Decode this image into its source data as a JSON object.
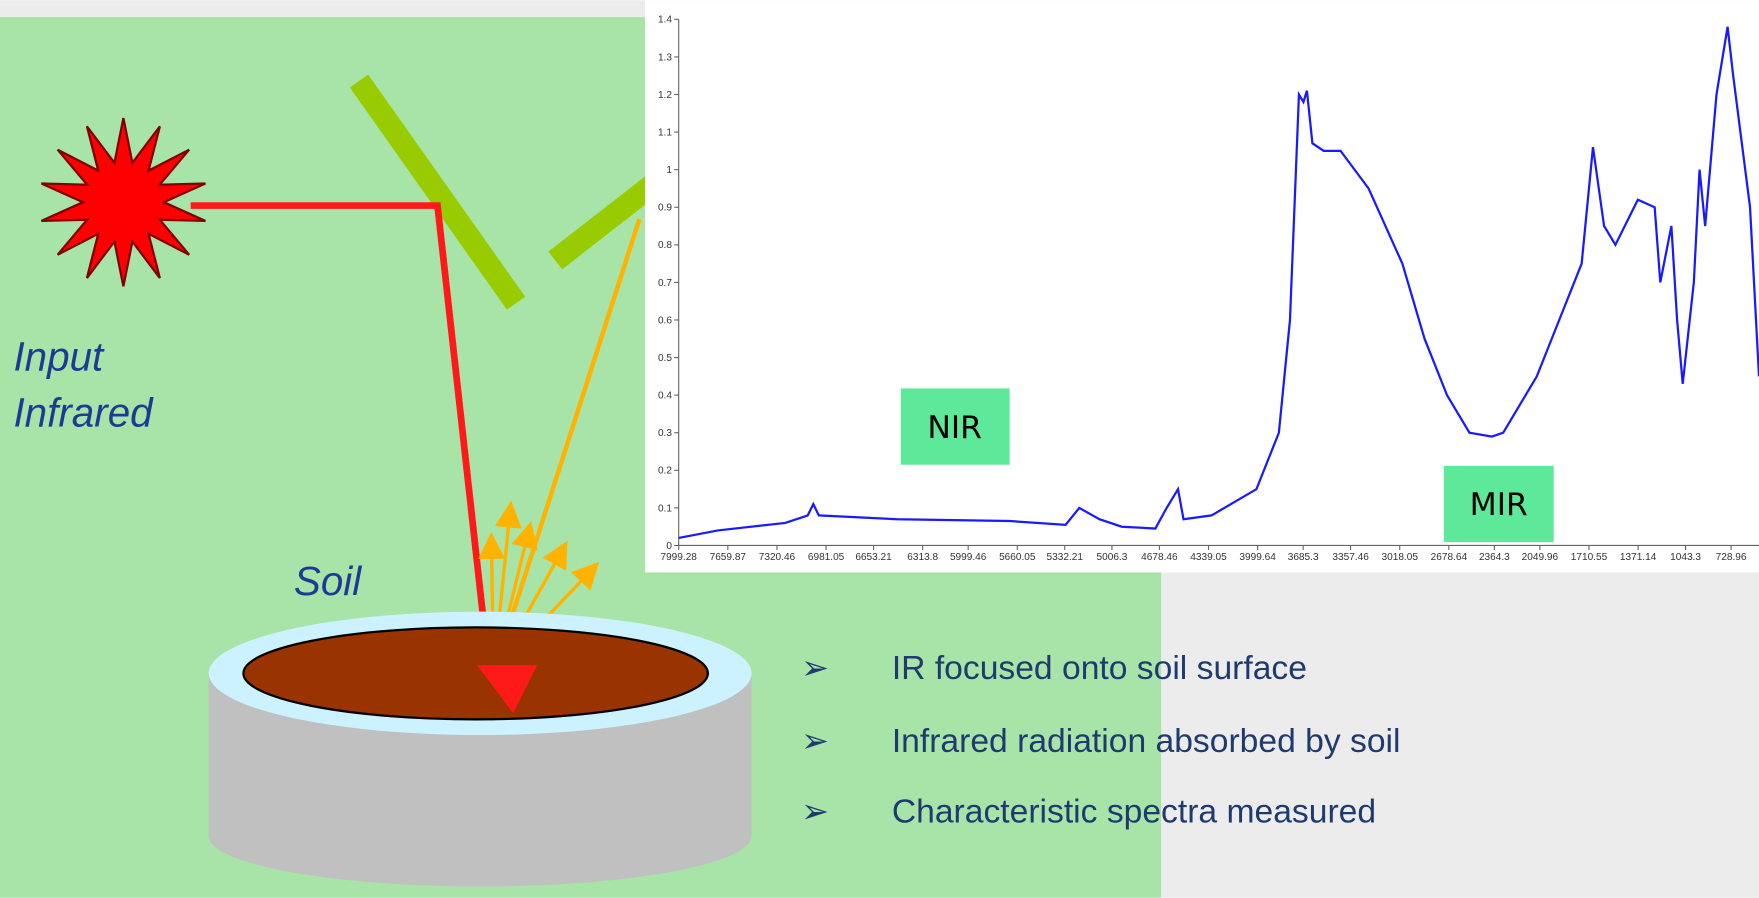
{
  "diagram": {
    "source_label": [
      "Input",
      "Infrared"
    ],
    "sample_label": "Soil",
    "bullets": [
      "IR focused onto soil surface",
      "Infrared radiation absorbed by soil",
      "Characteristic spectra measured"
    ]
  },
  "chart_data": {
    "type": "line",
    "color": "#1a1aff",
    "annotations": [
      "NIR",
      "MIR"
    ],
    "xlim": [
      7999.28,
      536
    ],
    "ylim": [
      0,
      1.4
    ],
    "xticks": [
      7999.28,
      7659.87,
      7320.46,
      6981.05,
      6653.21,
      6313.8,
      5999.46,
      5660.05,
      5332.21,
      5006.3,
      4678.46,
      4339.05,
      3999.64,
      3685.3,
      3357.46,
      3018.05,
      2678.64,
      2364.3,
      2049.96,
      1710.55,
      1371.14,
      1043.3,
      728.96
    ],
    "yticks": [
      0,
      0.1,
      0.2,
      0.3,
      0.4,
      0.5,
      0.6,
      0.7,
      0.8,
      0.9,
      1,
      1.1,
      1.2,
      1.3,
      1.4
    ],
    "x": [
      7999,
      7728,
      7263,
      7108,
      7069,
      7031,
      6488,
      5713,
      5326,
      5232,
      5093,
      4938,
      4706,
      4628,
      4550,
      4512,
      4318,
      4008,
      3853,
      3776,
      3714,
      3683,
      3659,
      3621,
      3543,
      3427,
      3233,
      3000,
      2846,
      2691,
      2536,
      2381,
      2303,
      2071,
      1916,
      1761,
      1683,
      1606,
      1528,
      1373,
      1257,
      1218,
      1141,
      1102,
      1063,
      986,
      947,
      908,
      830,
      753,
      714,
      598,
      536
    ],
    "values": [
      0.02,
      0.04,
      0.06,
      0.08,
      0.11,
      0.08,
      0.07,
      0.065,
      0.055,
      0.1,
      0.07,
      0.05,
      0.045,
      0.1,
      0.15,
      0.07,
      0.08,
      0.15,
      0.3,
      0.6,
      1.2,
      1.18,
      1.21,
      1.07,
      1.05,
      1.05,
      0.95,
      0.75,
      0.55,
      0.4,
      0.3,
      0.29,
      0.3,
      0.45,
      0.6,
      0.75,
      1.06,
      0.85,
      0.8,
      0.92,
      0.9,
      0.7,
      0.85,
      0.6,
      0.43,
      0.7,
      1.0,
      0.85,
      1.2,
      1.38,
      1.25,
      0.9,
      0.45
    ]
  }
}
